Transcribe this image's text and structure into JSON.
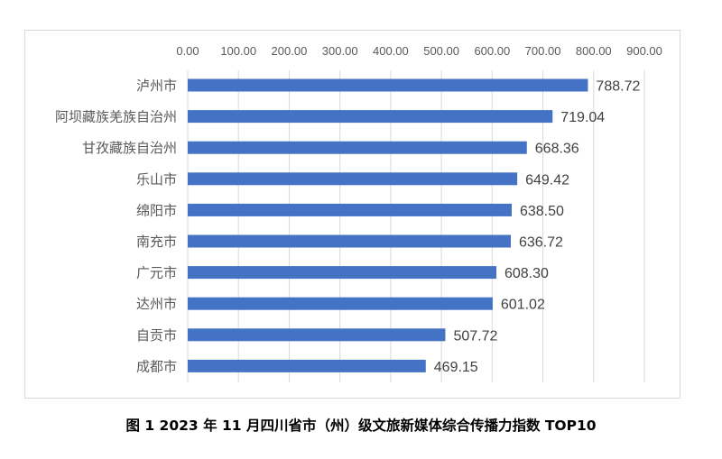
{
  "chart_data": {
    "type": "bar",
    "orientation": "horizontal",
    "categories": [
      "泸州市",
      "阿坝藏族羌族自治州",
      "甘孜藏族自治州",
      "乐山市",
      "绵阳市",
      "南充市",
      "广元市",
      "达州市",
      "自贡市",
      "成都市"
    ],
    "values": [
      788.72,
      719.04,
      668.36,
      649.42,
      638.5,
      636.72,
      608.3,
      601.02,
      507.72,
      469.15
    ],
    "value_labels": [
      "788.72",
      "719.04",
      "668.36",
      "649.42",
      "638.50",
      "636.72",
      "608.30",
      "601.02",
      "507.72",
      "469.15"
    ],
    "x_ticks": [
      "0.00",
      "100.00",
      "200.00",
      "300.00",
      "400.00",
      "500.00",
      "600.00",
      "700.00",
      "800.00",
      "900.00"
    ],
    "xlim": [
      0,
      900
    ],
    "x_axis_position": "top",
    "grid": true,
    "bar_color": "#4472c4",
    "title": "",
    "xlabel": "",
    "ylabel": ""
  },
  "caption": "图 1   2023 年 11 月四川省市（州）级文旅新媒体综合传播力指数 TOP10"
}
